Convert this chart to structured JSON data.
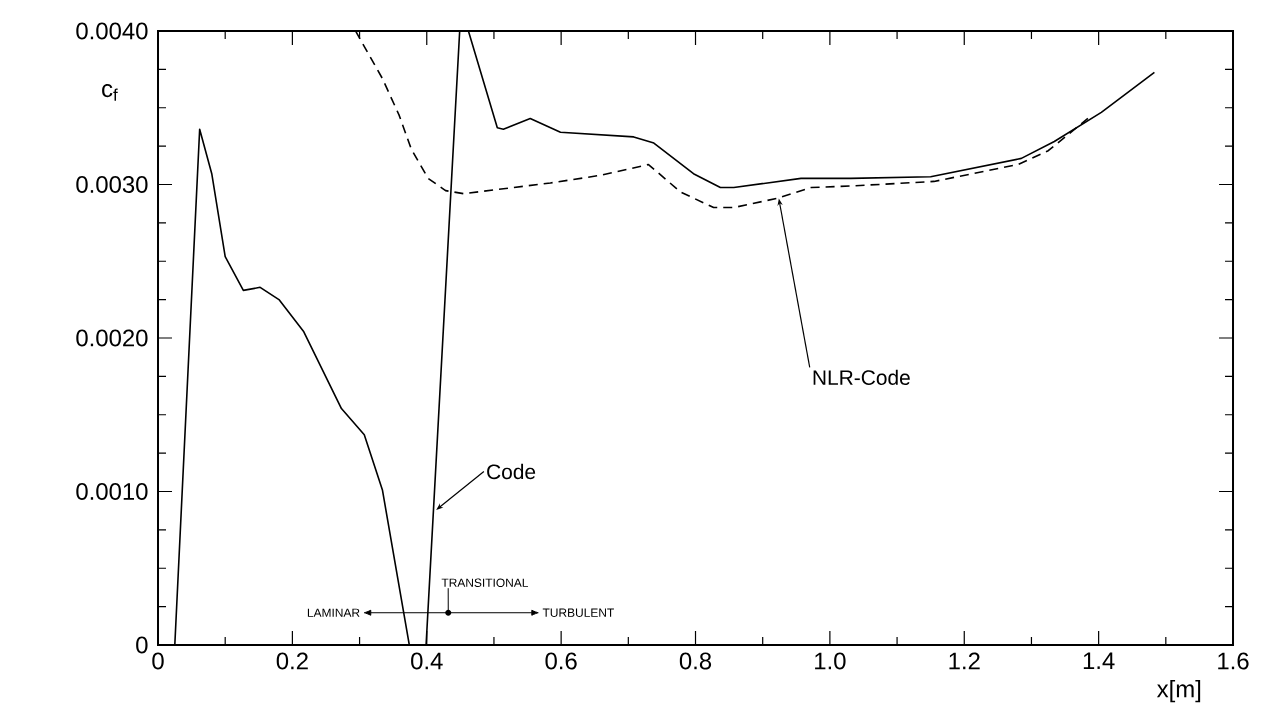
{
  "chart_data": {
    "type": "line",
    "xlabel": "x[m]",
    "ylabel": "c$_{f}$",
    "xlim": [
      0,
      1.6
    ],
    "ylim": [
      0,
      0.004
    ],
    "xticks": [
      0,
      0.2,
      0.4,
      0.6,
      0.8,
      {
        "value": 1,
        "label": "1.0"
      },
      1.2,
      1.4,
      1.6
    ],
    "yticks": [
      0,
      {
        "value": 0.001,
        "label": "0.0010"
      },
      {
        "value": 0.002,
        "label": "0.0020"
      },
      {
        "value": 0.003,
        "label": "0.0030"
      },
      {
        "value": 0.004,
        "label": "0.0040"
      }
    ],
    "grid": false,
    "legend": false,
    "marker": "none",
    "series": [
      {
        "name": "Code",
        "color": "#000000",
        "line_style": "solid",
        "x": [
          0.025,
          0.062,
          0.08,
          0.1,
          0.127,
          0.152,
          0.18,
          0.217,
          0.273,
          0.307,
          0.334,
          0.374,
          0.399,
          0.449,
          0.462,
          0.505,
          0.514,
          0.554,
          0.599,
          0.708,
          0.738,
          0.797,
          0.837,
          0.857,
          0.957,
          1.031,
          1.15,
          1.285,
          1.334,
          1.404,
          1.483
        ],
        "values": [
          0,
          0.00336,
          0.00307,
          0.00253,
          0.00231,
          0.00233,
          0.00225,
          0.00204,
          0.00154,
          0.00137,
          0.00101,
          0,
          0,
          0.004,
          0.004,
          0.00337,
          0.00336,
          0.00343,
          0.00334,
          0.00331,
          0.00327,
          0.00307,
          0.00298,
          0.00298,
          0.00304,
          0.00304,
          0.00305,
          0.00317,
          0.00328,
          0.00347,
          0.00373
        ]
      },
      {
        "name": "NLR-Code",
        "color": "#000000",
        "line_style": "dashed",
        "x": [
          0.294,
          0.334,
          0.359,
          0.377,
          0.402,
          0.428,
          0.455,
          0.584,
          0.659,
          0.73,
          0.778,
          0.827,
          0.857,
          0.922,
          0.972,
          1.031,
          1.155,
          1.28,
          1.325,
          1.384
        ],
        "values": [
          0.004,
          0.00369,
          0.00345,
          0.00323,
          0.00304,
          0.00296,
          0.00294,
          0.00301,
          0.00306,
          0.00313,
          0.00295,
          0.00285,
          0.00285,
          0.00291,
          0.00298,
          0.00299,
          0.00302,
          0.00313,
          0.00322,
          0.00343
        ]
      }
    ],
    "annotations": [
      "LAMINAR",
      "TRANSITIONAL",
      "TURBULENT"
    ]
  }
}
